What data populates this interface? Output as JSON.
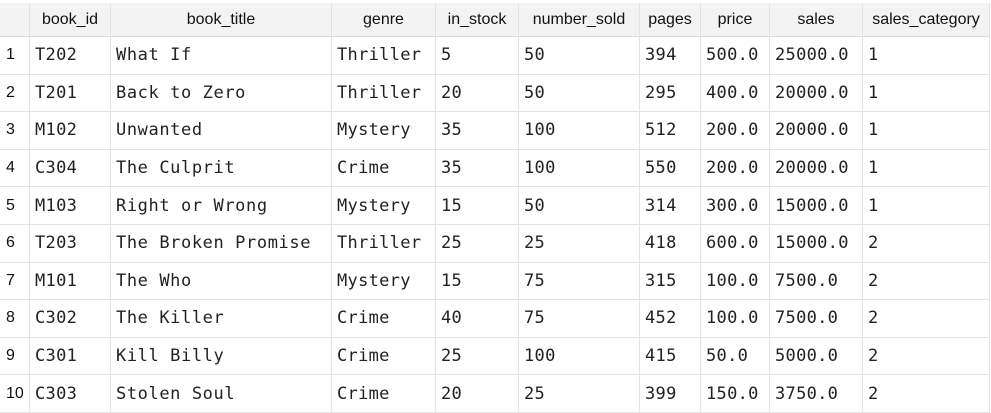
{
  "table": {
    "columns": [
      "",
      "book_id",
      "book_title",
      "genre",
      "in_stock",
      "number_sold",
      "pages",
      "price",
      "sales",
      "sales_category"
    ],
    "rows": [
      {
        "idx": "1",
        "book_id": "T202",
        "book_title": "What If",
        "genre": "Thriller",
        "in_stock": "5",
        "number_sold": "50",
        "pages": "394",
        "price": "500.0",
        "sales": "25000.0",
        "sales_category": "1"
      },
      {
        "idx": "2",
        "book_id": "T201",
        "book_title": "Back to Zero",
        "genre": "Thriller",
        "in_stock": "20",
        "number_sold": "50",
        "pages": "295",
        "price": "400.0",
        "sales": "20000.0",
        "sales_category": "1"
      },
      {
        "idx": "3",
        "book_id": "M102",
        "book_title": "Unwanted",
        "genre": "Mystery",
        "in_stock": "35",
        "number_sold": "100",
        "pages": "512",
        "price": "200.0",
        "sales": "20000.0",
        "sales_category": "1"
      },
      {
        "idx": "4",
        "book_id": "C304",
        "book_title": "The Culprit",
        "genre": "Crime",
        "in_stock": "35",
        "number_sold": "100",
        "pages": "550",
        "price": "200.0",
        "sales": "20000.0",
        "sales_category": "1"
      },
      {
        "idx": "5",
        "book_id": "M103",
        "book_title": "Right or Wrong",
        "genre": "Mystery",
        "in_stock": "15",
        "number_sold": "50",
        "pages": "314",
        "price": "300.0",
        "sales": "15000.0",
        "sales_category": "1"
      },
      {
        "idx": "6",
        "book_id": "T203",
        "book_title": "The Broken Promise",
        "genre": "Thriller",
        "in_stock": "25",
        "number_sold": "25",
        "pages": "418",
        "price": "600.0",
        "sales": "15000.0",
        "sales_category": "2"
      },
      {
        "idx": "7",
        "book_id": "M101",
        "book_title": "The Who",
        "genre": "Mystery",
        "in_stock": "15",
        "number_sold": "75",
        "pages": "315",
        "price": "100.0",
        "sales": "7500.0",
        "sales_category": "2"
      },
      {
        "idx": "8",
        "book_id": "C302",
        "book_title": "The Killer",
        "genre": "Crime",
        "in_stock": "40",
        "number_sold": "75",
        "pages": "452",
        "price": "100.0",
        "sales": "7500.0",
        "sales_category": "2"
      },
      {
        "idx": "9",
        "book_id": "C301",
        "book_title": "Kill Billy",
        "genre": "Crime",
        "in_stock": "25",
        "number_sold": "100",
        "pages": "415",
        "price": "50.0",
        "sales": "5000.0",
        "sales_category": "2"
      },
      {
        "idx": "10",
        "book_id": "C303",
        "book_title": "Stolen Soul",
        "genre": "Crime",
        "in_stock": "20",
        "number_sold": "25",
        "pages": "399",
        "price": "150.0",
        "sales": "3750.0",
        "sales_category": "2"
      }
    ]
  },
  "colors": {
    "header_bg": "#f3f3f3",
    "gridline": "#e3e3e3",
    "text": "#222222"
  }
}
